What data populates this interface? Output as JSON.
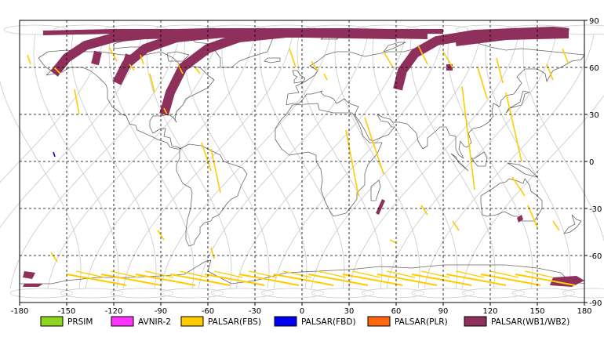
{
  "map": {
    "x_ticks": [
      "-180",
      "-150",
      "-120",
      "-90",
      "-60",
      "-30",
      "0",
      "30",
      "60",
      "90",
      "120",
      "150",
      "180"
    ],
    "y_ticks": [
      "90",
      "60",
      "30",
      "0",
      "-30",
      "-60",
      "-90"
    ],
    "lon_range": [
      -180,
      180
    ],
    "lat_range": [
      -90,
      90
    ],
    "grid": "dashed, 30-degree",
    "colors": {
      "coastline": "#666666",
      "orbit": "#c8c8c8",
      "grid": "#000000",
      "frame": "#000000"
    }
  },
  "legend": [
    {
      "label": "PRSIM",
      "color": "#8fd620"
    },
    {
      "label": "AVNIR-2",
      "color": "#ff33ff"
    },
    {
      "label": "PALSAR(FBS)",
      "color": "#ffcc00"
    },
    {
      "label": "PALSAR(FBD)",
      "color": "#0000ee"
    },
    {
      "label": "PALSAR(PLR)",
      "color": "#ff6611"
    },
    {
      "label": "PALSAR(WB1/WB2)",
      "color": "#8e2f5c"
    }
  ],
  "coverage": {
    "PALSAR(WB1/WB2)": [
      {
        "region": "northern high-latitude arcs",
        "lon": [
          -165,
          170
        ],
        "lat": [
          52,
          83
        ]
      },
      {
        "region": "Mozambique channel strip",
        "lon": [
          47,
          53
        ],
        "lat": [
          -34,
          -25
        ]
      },
      {
        "region": "Siberia",
        "lon": [
          93,
          96
        ],
        "lat": [
          58,
          62
        ]
      },
      {
        "region": "SE Australia",
        "lon": [
          138,
          141
        ],
        "lat": [
          -39,
          -34
        ]
      },
      {
        "region": "Antarctica",
        "lon": [
          -175,
          180
        ],
        "lat": [
          -80,
          -70
        ]
      }
    ],
    "PALSAR(FBS)": [
      {
        "region": "Antarctic coast swaths",
        "lon": [
          -150,
          170
        ],
        "lat": [
          -80,
          -70
        ]
      },
      {
        "region": "South America",
        "lon": [
          -60,
          -50
        ],
        "lat": [
          -30,
          10
        ]
      },
      {
        "region": "Africa",
        "lon": [
          25,
          60
        ],
        "lat": [
          -25,
          30
        ]
      },
      {
        "region": "Asia / Oceania",
        "lon": [
          60,
          165
        ],
        "lat": [
          -40,
          70
        ]
      }
    ],
    "PALSAR(FBD)": [
      {
        "region": "North Pacific",
        "lon": [
          -159,
          -157
        ],
        "lat": [
          3,
          7
        ]
      }
    ]
  }
}
